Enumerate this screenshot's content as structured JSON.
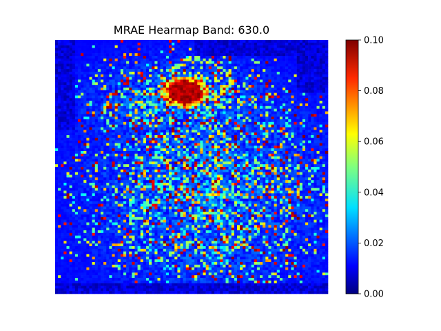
{
  "chart_data": {
    "type": "heatmap",
    "title": "MRAE Hearmap Band: 630.0",
    "xlabel": "",
    "ylabel": "",
    "colormap": "jet",
    "grid_size": [
      96,
      96
    ],
    "value_range": [
      0.0,
      0.1
    ],
    "colorbar": {
      "ticks": [
        0.0,
        0.02,
        0.04,
        0.06,
        0.08,
        0.1
      ],
      "tick_labels": [
        "0.00",
        "0.02",
        "0.04",
        "0.06",
        "0.08",
        "0.10"
      ]
    },
    "description_values": {
      "background_level": 0.0,
      "hotspot_level": 0.1
    }
  }
}
